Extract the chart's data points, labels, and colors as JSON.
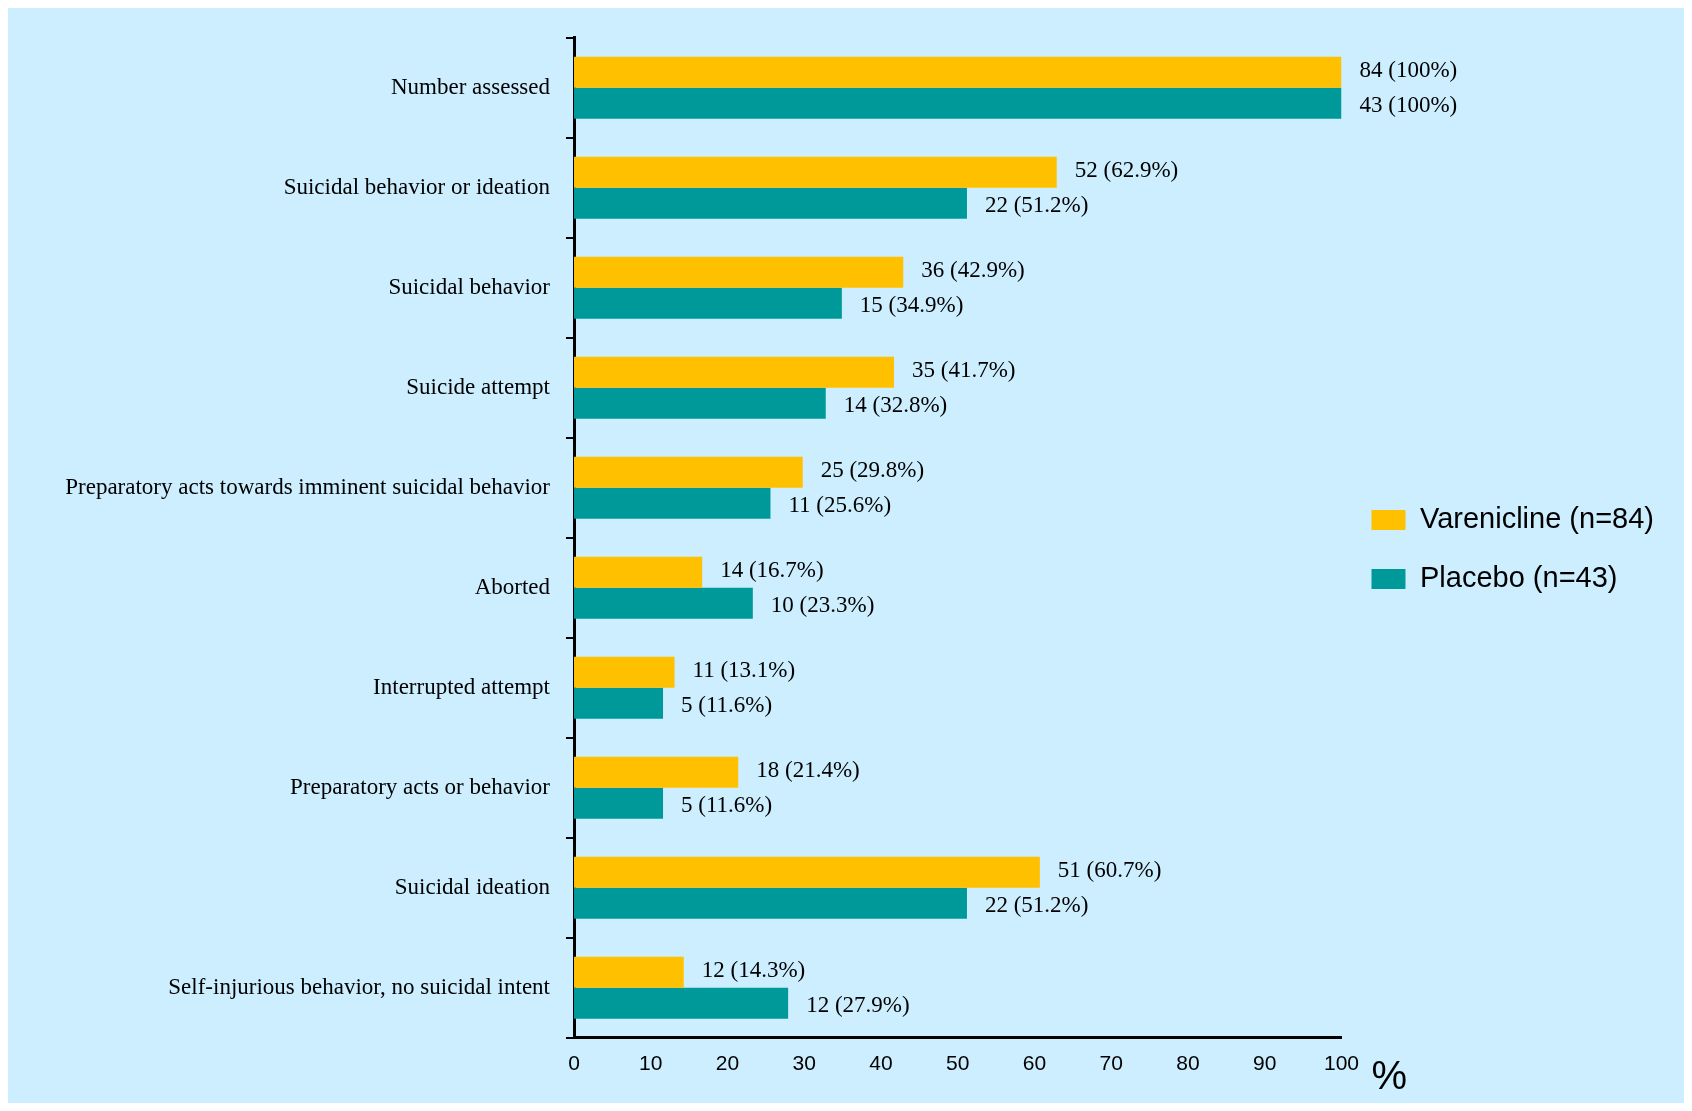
{
  "chart_data": {
    "type": "bar",
    "orientation": "horizontal",
    "xlabel": "%",
    "categories": [
      "Number assessed",
      "Suicidal behavior or ideation",
      "Suicidal behavior",
      "Suicide attempt",
      "Preparatory acts towards imminent suicidal behavior",
      "Aborted",
      "Interrupted attempt",
      "Preparatory acts or behavior",
      "Suicidal ideation",
      "Self-injurious behavior, no suicidal intent"
    ],
    "series": [
      {
        "name": "Varenicline (n=84)",
        "color": "#ffc000",
        "values": [
          100,
          62.9,
          42.9,
          41.7,
          29.8,
          16.7,
          13.1,
          21.4,
          60.7,
          14.3
        ],
        "value_labels": [
          "84 (100%)",
          "52 (62.9%)",
          "36 (42.9%)",
          "35 (41.7%)",
          "25 (29.8%)",
          "14 (16.7%)",
          "11 (13.1%)",
          "18 (21.4%)",
          "51 (60.7%)",
          "12 (14.3%)"
        ]
      },
      {
        "name": "Placebo (n=43)",
        "color": "#009999",
        "values": [
          100,
          51.2,
          34.9,
          32.8,
          25.6,
          23.3,
          11.6,
          11.6,
          51.2,
          27.9
        ],
        "value_labels": [
          "43 (100%)",
          "22 (51.2%)",
          "15 (34.9%)",
          "14 (32.8%)",
          "11 (25.6%)",
          "10 (23.3%)",
          "5 (11.6%)",
          "5 (11.6%)",
          "22 (51.2%)",
          "12 (27.9%)"
        ]
      }
    ],
    "xlim": [
      0,
      100
    ],
    "xticks": [
      0,
      10,
      20,
      30,
      40,
      50,
      60,
      70,
      80,
      90,
      100
    ],
    "grid": false,
    "legend": "right"
  }
}
